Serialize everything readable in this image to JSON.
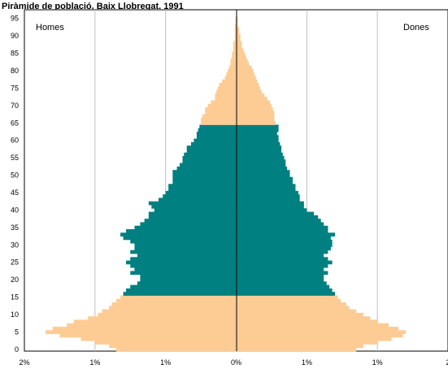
{
  "chart_data": {
    "type": "bar",
    "orientation": "horizontal",
    "title": "Piràmide de població. Baix Llobregat. 1991",
    "left_label": "Homes",
    "right_label": "Dones",
    "x_tick_labels": [
      "2%",
      "1%",
      "1%",
      "0%",
      "1%",
      "1%",
      "2"
    ],
    "x_range": [
      -1.5,
      1.5
    ],
    "y_tick_labels": [
      "0",
      "5",
      "10",
      "15",
      "20",
      "25",
      "30",
      "35",
      "40",
      "45",
      "50",
      "55",
      "60",
      "65",
      "70",
      "75",
      "80",
      "85",
      "90",
      "95"
    ],
    "y_range": [
      0,
      98
    ],
    "grid": "vertical",
    "colors": {
      "outer_ages": "#fdcc95",
      "working_ages": "#008080",
      "axis": "#000000",
      "grid": "#c0c0c0"
    },
    "working_age_range": [
      16,
      64
    ],
    "men": [
      0.85,
      0.9,
      1.0,
      1.1,
      1.25,
      1.35,
      1.3,
      1.2,
      1.15,
      1.05,
      0.98,
      0.95,
      0.9,
      0.88,
      0.85,
      0.82,
      0.8,
      0.78,
      0.75,
      0.7,
      0.68,
      0.68,
      0.75,
      0.72,
      0.75,
      0.78,
      0.75,
      0.7,
      0.75,
      0.72,
      0.72,
      0.75,
      0.8,
      0.82,
      0.78,
      0.72,
      0.68,
      0.65,
      0.62,
      0.62,
      0.58,
      0.6,
      0.62,
      0.55,
      0.52,
      0.5,
      0.48,
      0.48,
      0.45,
      0.45,
      0.45,
      0.45,
      0.42,
      0.4,
      0.38,
      0.38,
      0.37,
      0.35,
      0.35,
      0.32,
      0.3,
      0.28,
      0.28,
      0.27,
      0.26,
      0.25,
      0.25,
      0.24,
      0.22,
      0.22,
      0.2,
      0.18,
      0.15,
      0.15,
      0.14,
      0.13,
      0.12,
      0.1,
      0.08,
      0.07,
      0.06,
      0.05,
      0.04,
      0.04,
      0.03,
      0.03,
      0.02,
      0.02,
      0.02,
      0.01,
      0.01,
      0.01,
      0.01,
      0.01,
      0.005,
      0.005
    ],
    "women": [
      0.85,
      0.9,
      1.0,
      1.1,
      1.18,
      1.2,
      1.15,
      1.08,
      1.0,
      0.95,
      0.9,
      0.85,
      0.8,
      0.78,
      0.74,
      0.72,
      0.7,
      0.68,
      0.66,
      0.64,
      0.62,
      0.62,
      0.65,
      0.62,
      0.65,
      0.68,
      0.65,
      0.62,
      0.65,
      0.67,
      0.68,
      0.68,
      0.67,
      0.7,
      0.65,
      0.65,
      0.62,
      0.6,
      0.58,
      0.55,
      0.5,
      0.48,
      0.48,
      0.45,
      0.45,
      0.44,
      0.42,
      0.42,
      0.4,
      0.4,
      0.38,
      0.38,
      0.36,
      0.35,
      0.35,
      0.34,
      0.33,
      0.32,
      0.32,
      0.31,
      0.3,
      0.3,
      0.29,
      0.3,
      0.3,
      0.28,
      0.27,
      0.27,
      0.27,
      0.26,
      0.25,
      0.24,
      0.22,
      0.2,
      0.18,
      0.17,
      0.16,
      0.15,
      0.14,
      0.13,
      0.12,
      0.11,
      0.09,
      0.08,
      0.07,
      0.06,
      0.05,
      0.04,
      0.04,
      0.03,
      0.03,
      0.02,
      0.02,
      0.01,
      0.01,
      0.01
    ]
  }
}
